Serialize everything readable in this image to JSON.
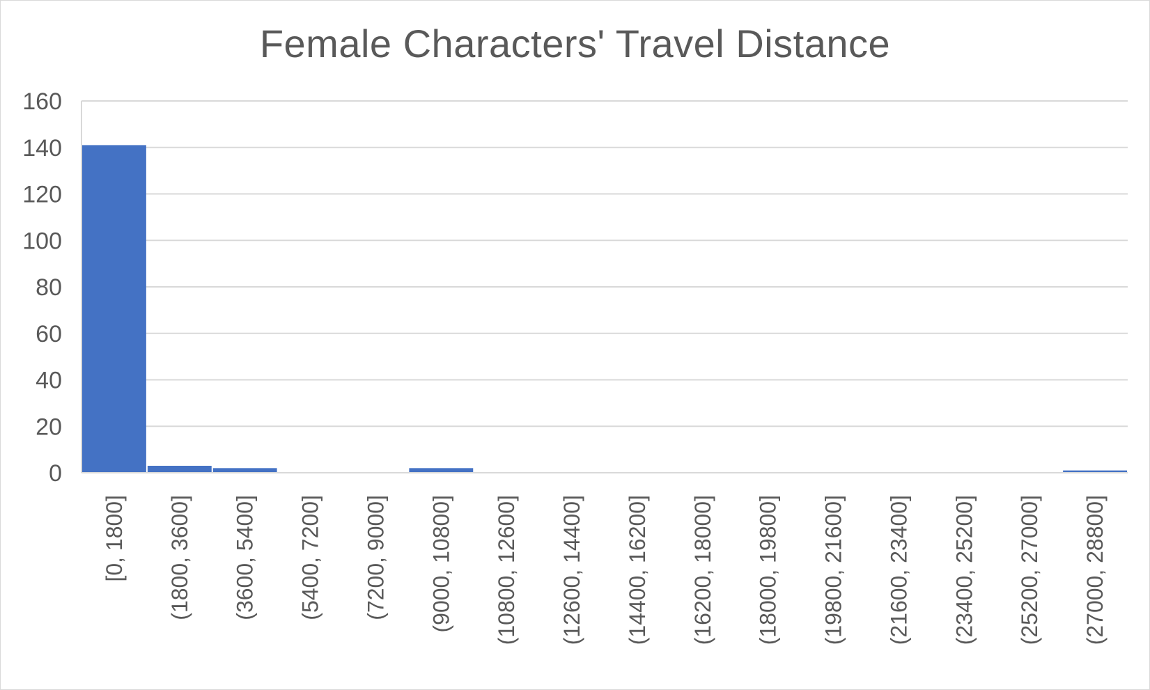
{
  "chart_data": {
    "type": "bar",
    "title": "Female Characters' Travel Distance",
    "xlabel": "",
    "ylabel": "",
    "ylim": [
      0,
      160
    ],
    "yticks": [
      0,
      20,
      40,
      60,
      80,
      100,
      120,
      140,
      160
    ],
    "grid": true,
    "legend": "none",
    "bar_color": "#4472C4",
    "categories": [
      "[0, 1800]",
      "(1800, 3600]",
      "(3600, 5400]",
      "(5400, 7200]",
      "(7200, 9000]",
      "(9000, 10800]",
      "(10800, 12600]",
      "(12600, 14400]",
      "(14400, 16200]",
      "(16200, 18000]",
      "(18000, 19800]",
      "(19800, 21600]",
      "(21600, 23400]",
      "(23400, 25200]",
      "(25200, 27000]",
      "(27000, 28800]"
    ],
    "values": [
      141,
      3,
      2,
      0,
      0,
      2,
      0,
      0,
      0,
      0,
      0,
      0,
      0,
      0,
      0,
      1
    ]
  }
}
